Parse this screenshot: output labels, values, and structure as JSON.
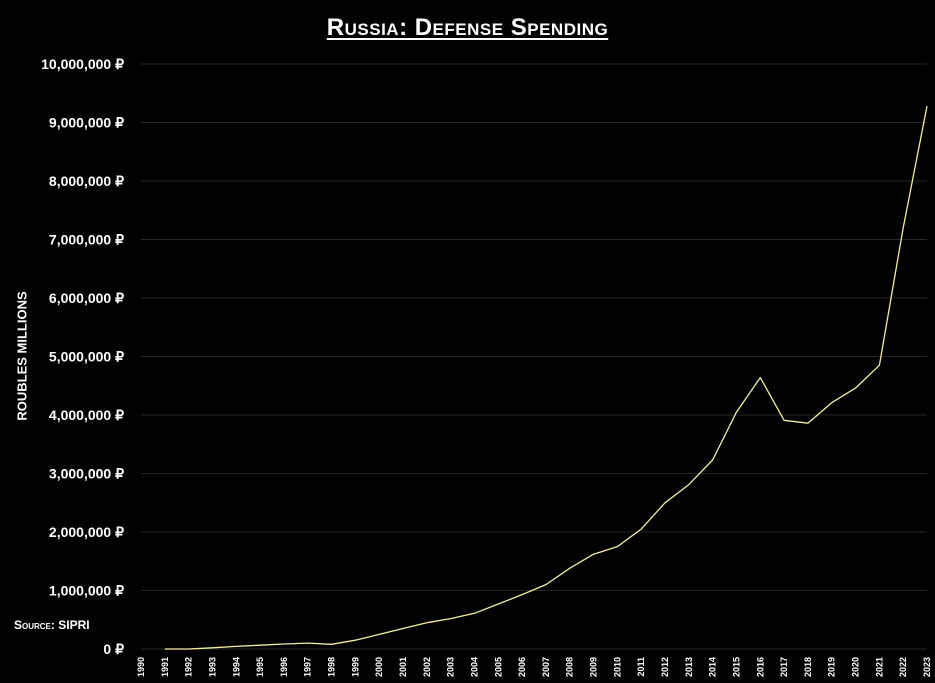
{
  "chart_data": {
    "type": "line",
    "title": "Russia: Defense Spending",
    "ylabel": "Roubles Millions",
    "xlabel": "",
    "source": "Source: SIPRI",
    "currency_suffix": "₽",
    "x": [
      "1990",
      "1991",
      "1992",
      "1993",
      "1994",
      "1995",
      "1996",
      "1997",
      "1998",
      "1999",
      "2000",
      "2001",
      "2002",
      "2003",
      "2004",
      "2005",
      "2006",
      "2007",
      "2008",
      "2009",
      "2010",
      "2011",
      "2012",
      "2013",
      "2014",
      "2015",
      "2016",
      "2017",
      "2018",
      "2019",
      "2020",
      "2021",
      "2022",
      "2023"
    ],
    "series": [
      {
        "color": "#f2f0a0",
        "values": [
          null,
          0,
          0,
          20000,
          45000,
          65000,
          85000,
          100000,
          80000,
          150000,
          250000,
          350000,
          450000,
          520000,
          610000,
          770000,
          930000,
          1100000,
          1380000,
          1620000,
          1750000,
          2050000,
          2500000,
          2810000,
          3230000,
          4050000,
          4640000,
          3910000,
          3860000,
          4210000,
          4460000,
          4850000,
          7200000,
          9280000
        ]
      }
    ],
    "ylim": [
      0,
      10000000
    ],
    "yticks": [
      0,
      1000000,
      2000000,
      3000000,
      4000000,
      5000000,
      6000000,
      7000000,
      8000000,
      9000000,
      10000000
    ],
    "ytick_labels": [
      "0 ₽",
      "1,000,000 ₽",
      "2,000,000 ₽",
      "3,000,000 ₽",
      "4,000,000 ₽",
      "5,000,000 ₽",
      "6,000,000 ₽",
      "7,000,000 ₽",
      "8,000,000 ₽",
      "9,000,000 ₽",
      "10,000,000 ₽"
    ],
    "grid": true,
    "legend": "none"
  }
}
